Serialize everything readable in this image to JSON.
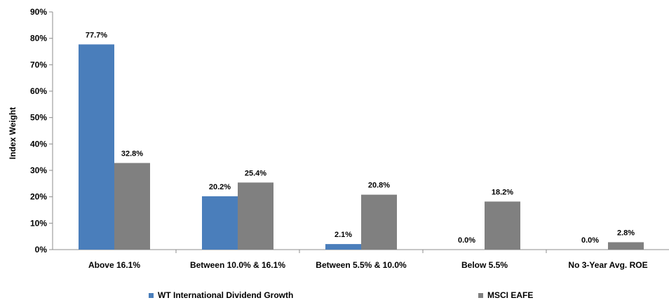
{
  "chart_data": {
    "type": "bar",
    "title": "",
    "xlabel": "",
    "ylabel": "Index Weight",
    "ylim": [
      0,
      90
    ],
    "yticks": [
      0,
      10,
      20,
      30,
      40,
      50,
      60,
      70,
      80,
      90
    ],
    "ytick_suffix": "%",
    "grid": false,
    "legend_position": "bottom",
    "categories": [
      "Above 16.1%",
      "Between 10.0% & 16.1%",
      "Between 5.5% & 10.0%",
      "Below 5.5%",
      "No 3-Year Avg. ROE"
    ],
    "series": [
      {
        "name": "WT International Dividend Growth",
        "color": "#4a7ebb",
        "values": [
          77.7,
          20.2,
          2.1,
          0.0,
          0.0
        ],
        "labels": [
          "77.7%",
          "20.2%",
          "2.1%",
          "0.0%",
          "0.0%"
        ]
      },
      {
        "name": "MSCI EAFE",
        "color": "#808080",
        "values": [
          32.8,
          25.4,
          20.8,
          18.2,
          2.8
        ],
        "labels": [
          "32.8%",
          "25.4%",
          "20.8%",
          "18.2%",
          "2.8%"
        ]
      }
    ]
  }
}
